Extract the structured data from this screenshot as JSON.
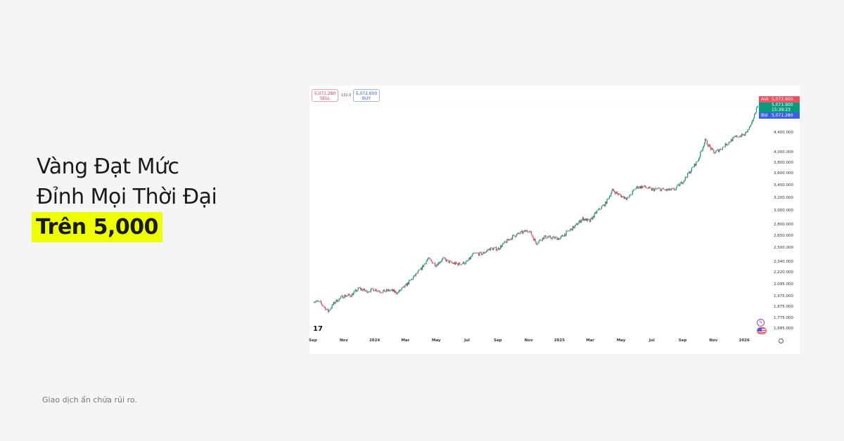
{
  "headline": {
    "line1": "Vàng Đạt Mức",
    "line2": "Đỉnh Mọi Thời Đại",
    "line3": "Trên 5,000"
  },
  "footer": "Giao dịch ẩn chứa rủi ro.",
  "trade": {
    "sell_price": "5,071.280",
    "sell_label": "SELL",
    "spread": "132.0",
    "buy_price": "5,072.600",
    "buy_label": "BUY"
  },
  "tags": {
    "ask_label": "Ask",
    "ask_price": "5,072.600",
    "last_price": "5,071.900",
    "countdown": "15:39:23",
    "bid_label": "Bid",
    "bid_price": "5,071.280"
  },
  "colors": {
    "up": "#089981",
    "down": "#f23645",
    "ask": "#f05060",
    "last": "#089981",
    "bid": "#3a60e8",
    "highlight": "#eeff00"
  },
  "chart_data": {
    "type": "candlestick",
    "y_scale": "log",
    "ylim": [
      1640,
      5150
    ],
    "y_ticks": [
      "4,400.000",
      "4,000.000",
      "3,800.000",
      "3,600.000",
      "3,400.000",
      "3,200.000",
      "3,000.000",
      "2,800.000",
      "2,650.000",
      "2,500.000",
      "2,340.000",
      "2,220.000",
      "2,095.000",
      "1,975.000",
      "1,875.000",
      "1,775.000",
      "1,685.000"
    ],
    "x_ticks": [
      "Sep",
      "Nov",
      "2024",
      "Mar",
      "May",
      "Jul",
      "Sep",
      "Nov",
      "2025",
      "Mar",
      "May",
      "Jul",
      "Sep",
      "Nov",
      "2026"
    ],
    "x": [
      "2023-09-01",
      "2023-09-15",
      "2023-10-01",
      "2023-10-15",
      "2023-11-01",
      "2023-11-15",
      "2023-12-01",
      "2023-12-15",
      "2024-01-01",
      "2024-01-15",
      "2024-02-01",
      "2024-02-15",
      "2024-03-01",
      "2024-03-15",
      "2024-04-01",
      "2024-04-15",
      "2024-05-01",
      "2024-05-15",
      "2024-06-01",
      "2024-06-15",
      "2024-07-01",
      "2024-07-15",
      "2024-08-01",
      "2024-08-15",
      "2024-09-01",
      "2024-09-15",
      "2024-10-01",
      "2024-10-15",
      "2024-11-01",
      "2024-11-15",
      "2024-12-01",
      "2024-12-15",
      "2025-01-01",
      "2025-01-15",
      "2025-02-01",
      "2025-02-15",
      "2025-03-01",
      "2025-03-15",
      "2025-04-01",
      "2025-04-15",
      "2025-05-01",
      "2025-05-15",
      "2025-06-01",
      "2025-06-15",
      "2025-07-01",
      "2025-07-15",
      "2025-08-01",
      "2025-08-15",
      "2025-09-01",
      "2025-09-15",
      "2025-10-01",
      "2025-10-15",
      "2025-11-01",
      "2025-11-15",
      "2025-12-01",
      "2025-12-15",
      "2026-01-01",
      "2026-01-15",
      "2026-01-27"
    ],
    "close": [
      1940,
      1920,
      1840,
      1930,
      1985,
      1990,
      2060,
      2030,
      2050,
      2025,
      2040,
      2015,
      2080,
      2160,
      2260,
      2380,
      2310,
      2380,
      2330,
      2320,
      2340,
      2440,
      2440,
      2500,
      2500,
      2580,
      2660,
      2700,
      2740,
      2570,
      2650,
      2640,
      2630,
      2710,
      2800,
      2900,
      2860,
      3000,
      3120,
      3330,
      3240,
      3200,
      3380,
      3390,
      3340,
      3350,
      3330,
      3340,
      3480,
      3650,
      3860,
      4250,
      4000,
      4080,
      4220,
      4330,
      4370,
      4600,
      5071
    ]
  }
}
